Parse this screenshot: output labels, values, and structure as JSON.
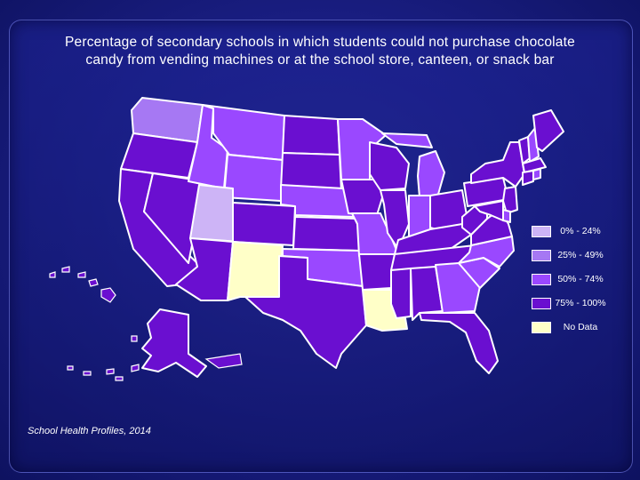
{
  "title_line1": "Percentage of secondary schools in which students could not purchase chocolate",
  "title_line2": "candy from vending machines or at the school store, canteen, or snack bar",
  "source": "School Health Profiles, 2014",
  "colors": {
    "0-24": "#cdb4f6",
    "25-49": "#a678f3",
    "50-74": "#9a48ff",
    "75-100": "#6a0fd0",
    "no_data": "#ffffc8"
  },
  "legend": [
    {
      "label": "0% - 24%",
      "category": "0-24"
    },
    {
      "label": "25% - 49%",
      "category": "25-49"
    },
    {
      "label": "50% - 74%",
      "category": "50-74"
    },
    {
      "label": "75% - 100%",
      "category": "75-100"
    },
    {
      "label": "No Data",
      "category": "no_data"
    }
  ],
  "states": {
    "WA": "25-49",
    "OR": "75-100",
    "CA": "75-100",
    "NV": "75-100",
    "ID": "50-74",
    "MT": "50-74",
    "WY": "50-74",
    "UT": "0-24",
    "AZ": "75-100",
    "CO": "75-100",
    "NM": "no_data",
    "ND": "75-100",
    "SD": "75-100",
    "NE": "50-74",
    "KS": "75-100",
    "OK": "50-74",
    "TX": "75-100",
    "MN": "50-74",
    "IA": "75-100",
    "MO": "50-74",
    "AR": "75-100",
    "LA": "no_data",
    "WI": "75-100",
    "IL": "75-100",
    "MI": "50-74",
    "IN": "50-74",
    "OH": "75-100",
    "KY": "75-100",
    "TN": "75-100",
    "MS": "75-100",
    "AL": "75-100",
    "GA": "50-74",
    "FL": "75-100",
    "SC": "50-74",
    "NC": "50-74",
    "VA": "75-100",
    "WV": "75-100",
    "PA": "75-100",
    "NY": "75-100",
    "VT": "75-100",
    "NH": "50-74",
    "ME": "75-100",
    "MA": "75-100",
    "CT": "75-100",
    "RI": "50-74",
    "NJ": "75-100",
    "DE": "50-74",
    "MD": "75-100",
    "AK": "75-100",
    "HI": "75-100"
  }
}
